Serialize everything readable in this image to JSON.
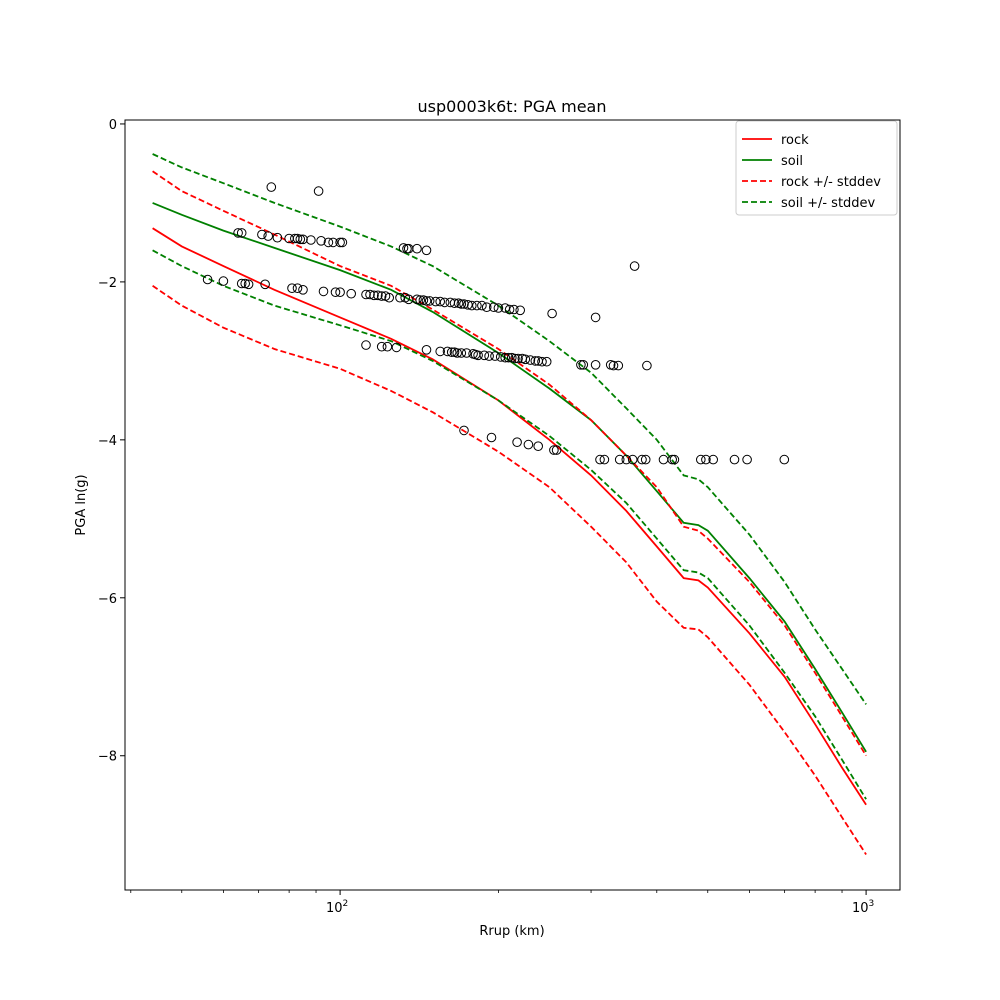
{
  "chart_data": {
    "type": "line",
    "title": "usp0003k6t: PGA mean",
    "xlabel": "Rrup (km)",
    "ylabel": "PGA ln(g)",
    "xscale": "log",
    "xlim": [
      39,
      1160
    ],
    "ylim": [
      -9.7,
      0.05
    ],
    "yticks": [
      0,
      -2,
      -4,
      -6,
      -8
    ],
    "ytick_labels": [
      "0",
      "−2",
      "−4",
      "−6",
      "−8"
    ],
    "xticks": [
      100,
      1000
    ],
    "xtick_labels": [
      "10",
      "10"
    ],
    "xtick_exponents": [
      "2",
      "3"
    ],
    "legend_position": "upper right",
    "series": [
      {
        "name": "rock",
        "color": "#ff0000",
        "style": "solid",
        "x": [
          44,
          50,
          60,
          75,
          100,
          125,
          150,
          200,
          250,
          300,
          350,
          400,
          450,
          480,
          500,
          600,
          700,
          800,
          900,
          1000
        ],
        "y": [
          -1.32,
          -1.55,
          -1.8,
          -2.1,
          -2.45,
          -2.72,
          -2.98,
          -3.5,
          -4.0,
          -4.45,
          -4.9,
          -5.35,
          -5.75,
          -5.78,
          -5.87,
          -6.45,
          -7.0,
          -7.6,
          -8.15,
          -8.62
        ]
      },
      {
        "name": "soil",
        "color": "#008000",
        "style": "solid",
        "x": [
          44,
          50,
          60,
          75,
          100,
          125,
          150,
          200,
          250,
          300,
          350,
          400,
          450,
          480,
          500,
          600,
          700,
          800,
          900,
          1000
        ],
        "y": [
          -1.0,
          -1.15,
          -1.35,
          -1.57,
          -1.85,
          -2.1,
          -2.38,
          -2.9,
          -3.35,
          -3.75,
          -4.2,
          -4.65,
          -5.05,
          -5.08,
          -5.15,
          -5.75,
          -6.3,
          -6.9,
          -7.45,
          -7.95
        ]
      },
      {
        "name": "rock +/- stddev",
        "color": "#ff0000",
        "style": "dashed",
        "x": [
          44,
          50,
          60,
          75,
          100,
          125,
          150,
          200,
          250,
          300,
          350,
          400,
          450,
          480,
          500,
          600,
          700,
          800,
          900,
          1000
        ],
        "y": [
          -0.6,
          -0.85,
          -1.1,
          -1.4,
          -1.8,
          -2.05,
          -2.35,
          -2.85,
          -3.3,
          -3.75,
          -4.2,
          -4.6,
          -5.1,
          -5.15,
          -5.25,
          -5.8,
          -6.35,
          -6.95,
          -7.5,
          -8.0
        ]
      },
      {
        "name": "soil +/- stddev",
        "color": "#008000",
        "style": "dashed",
        "x": [
          44,
          50,
          60,
          75,
          100,
          125,
          150,
          200,
          250,
          300,
          350,
          400,
          450,
          480,
          500,
          600,
          700,
          800,
          900,
          1000
        ],
        "y": [
          -0.38,
          -0.55,
          -0.75,
          -1.0,
          -1.3,
          -1.55,
          -1.8,
          -2.3,
          -2.75,
          -3.15,
          -3.6,
          -4.0,
          -4.45,
          -4.5,
          -4.6,
          -5.2,
          -5.8,
          -6.4,
          -6.9,
          -7.35
        ]
      },
      {
        "name": "rock -stddev",
        "color": "#ff0000",
        "style": "dashed",
        "legend": false,
        "x": [
          44,
          50,
          60,
          75,
          100,
          125,
          150,
          200,
          250,
          300,
          350,
          400,
          450,
          480,
          500,
          600,
          700,
          800,
          900,
          1000
        ],
        "y": [
          -2.05,
          -2.3,
          -2.58,
          -2.85,
          -3.1,
          -3.38,
          -3.65,
          -4.15,
          -4.6,
          -5.1,
          -5.55,
          -6.05,
          -6.38,
          -6.4,
          -6.5,
          -7.1,
          -7.7,
          -8.25,
          -8.78,
          -9.25
        ]
      },
      {
        "name": "soil -stddev",
        "color": "#008000",
        "style": "dashed",
        "legend": false,
        "x": [
          44,
          50,
          60,
          75,
          100,
          125,
          150,
          200,
          250,
          300,
          350,
          400,
          450,
          480,
          500,
          600,
          700,
          800,
          900,
          1000
        ],
        "y": [
          -1.6,
          -1.8,
          -2.05,
          -2.3,
          -2.55,
          -2.75,
          -3.0,
          -3.5,
          -3.95,
          -4.38,
          -4.8,
          -5.25,
          -5.65,
          -5.68,
          -5.75,
          -6.35,
          -6.95,
          -7.5,
          -8.05,
          -8.55
        ]
      }
    ],
    "observations": {
      "marker": "open-circle",
      "x": [
        74,
        91,
        64,
        65,
        71,
        73,
        76,
        80,
        82,
        83,
        84,
        85,
        88,
        92,
        95,
        97,
        100,
        101,
        132,
        134,
        135,
        140,
        146,
        56,
        60,
        65,
        66,
        67,
        72,
        81,
        83,
        85,
        93,
        98,
        100,
        105,
        112,
        114,
        116,
        118,
        120,
        122,
        124,
        130,
        133,
        135,
        140,
        142,
        144,
        146,
        148,
        152,
        155,
        158,
        162,
        165,
        168,
        170,
        172,
        175,
        178,
        182,
        186,
        190,
        196,
        200,
        206,
        210,
        214,
        220,
        253,
        306,
        112,
        120,
        123,
        128,
        146,
        155,
        160,
        163,
        165,
        167,
        170,
        174,
        179,
        181,
        183,
        188,
        192,
        197,
        202,
        206,
        209,
        212,
        215,
        218,
        222,
        225,
        230,
        235,
        238,
        242,
        247,
        287,
        290,
        306,
        327,
        331,
        338,
        383,
        172,
        194,
        217,
        228,
        238,
        255,
        258,
        312,
        318,
        340,
        350,
        360,
        375,
        381,
        412,
        428,
        432,
        485,
        496,
        512,
        562,
        594,
        699,
        363
      ],
      "y": [
        -0.8,
        -0.85,
        -1.38,
        -1.38,
        -1.4,
        -1.42,
        -1.44,
        -1.45,
        -1.45,
        -1.45,
        -1.46,
        -1.46,
        -1.47,
        -1.48,
        -1.5,
        -1.5,
        -1.5,
        -1.5,
        -1.57,
        -1.58,
        -1.58,
        -1.58,
        -1.6,
        -1.97,
        -1.99,
        -2.02,
        -2.02,
        -2.03,
        -2.03,
        -2.08,
        -2.08,
        -2.1,
        -2.12,
        -2.13,
        -2.13,
        -2.15,
        -2.16,
        -2.16,
        -2.17,
        -2.17,
        -2.18,
        -2.18,
        -2.2,
        -2.2,
        -2.2,
        -2.22,
        -2.22,
        -2.23,
        -2.23,
        -2.24,
        -2.24,
        -2.25,
        -2.25,
        -2.26,
        -2.26,
        -2.27,
        -2.27,
        -2.28,
        -2.28,
        -2.29,
        -2.3,
        -2.3,
        -2.3,
        -2.32,
        -2.32,
        -2.33,
        -2.33,
        -2.35,
        -2.35,
        -2.36,
        -2.4,
        -2.45,
        -2.8,
        -2.82,
        -2.82,
        -2.83,
        -2.86,
        -2.88,
        -2.88,
        -2.89,
        -2.89,
        -2.9,
        -2.9,
        -2.9,
        -2.91,
        -2.92,
        -2.93,
        -2.93,
        -2.94,
        -2.94,
        -2.95,
        -2.96,
        -2.96,
        -2.96,
        -2.97,
        -2.97,
        -2.97,
        -2.98,
        -2.99,
        -3.0,
        -3.0,
        -3.01,
        -3.01,
        -3.05,
        -3.05,
        -3.05,
        -3.05,
        -3.06,
        -3.06,
        -3.06,
        -3.88,
        -3.97,
        -4.03,
        -4.06,
        -4.08,
        -4.13,
        -4.13,
        -4.25,
        -4.25,
        -4.25,
        -4.25,
        -4.25,
        -4.25,
        -4.25,
        -4.25,
        -4.25,
        -4.25,
        -4.25,
        -4.25,
        -4.25,
        -4.25,
        -4.25,
        -4.25,
        -1.8
      ]
    }
  }
}
